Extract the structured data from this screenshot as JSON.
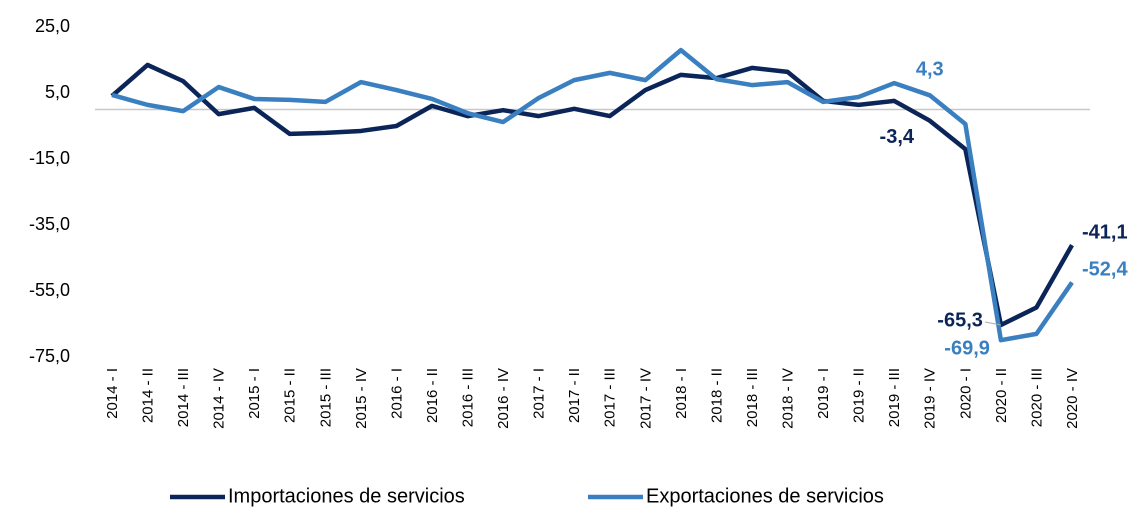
{
  "chart_data": {
    "type": "line",
    "categories": [
      "2014 - I",
      "2014 - II",
      "2014 - III",
      "2014 - IV",
      "2015 - I",
      "2015 - II",
      "2015 - III",
      "2015 - IV",
      "2016 - I",
      "2016 - II",
      "2016 - III",
      "2016 - IV",
      "2017 - I",
      "2017 - II",
      "2017 - III",
      "2017 - IV",
      "2018 - I",
      "2018 - II",
      "2018 - III",
      "2018 - IV",
      "2019 - I",
      "2019 - II",
      "2019 - III",
      "2019 - IV",
      "2020 - I",
      "2020 - II",
      "2020 - III",
      "2020 - IV"
    ],
    "series": [
      {
        "name": "Importaciones de servicios",
        "color": "#0b2559",
        "values": [
          4.1,
          13.5,
          8.6,
          -1.4,
          0.5,
          -7.4,
          -7.1,
          -6.5,
          -5,
          1.1,
          -2,
          -0.2,
          -2,
          0.2,
          -2,
          5.9,
          10.5,
          9.5,
          12.6,
          11.4,
          2.6,
          1.4,
          2.6,
          -3.4,
          -12,
          -65.3,
          -60,
          -41.1
        ],
        "value_labels": [
          null,
          null,
          null,
          null,
          null,
          null,
          null,
          null,
          null,
          null,
          null,
          null,
          null,
          null,
          null,
          null,
          null,
          null,
          null,
          null,
          null,
          null,
          null,
          "-3,4",
          null,
          "-65,3",
          null,
          "-41,1"
        ]
      },
      {
        "name": "Exportaciones de servicios",
        "color": "#3a7fc0",
        "values": [
          4.4,
          1.4,
          -0.5,
          6.8,
          3.2,
          2.9,
          2.3,
          8.3,
          5.9,
          3.2,
          -1.1,
          -3.8,
          3.5,
          8.9,
          11.1,
          8.9,
          18,
          9.2,
          7.4,
          8.3,
          2.3,
          3.8,
          8,
          4.3,
          -4.4,
          -69.9,
          -68,
          -52.4
        ],
        "value_labels": [
          null,
          null,
          null,
          null,
          null,
          null,
          null,
          null,
          null,
          null,
          null,
          null,
          null,
          null,
          null,
          null,
          null,
          null,
          null,
          null,
          null,
          null,
          null,
          "4,3",
          null,
          "-69,9",
          null,
          "-52,4"
        ]
      }
    ],
    "ylim": [
      -75,
      25
    ],
    "yticks": [
      {
        "value": 25,
        "label": "25,0"
      },
      {
        "value": 5,
        "label": "5,0"
      },
      {
        "value": -15,
        "label": "-15,0"
      },
      {
        "value": -35,
        "label": "-35,0"
      },
      {
        "value": -55,
        "label": "-55,0"
      },
      {
        "value": -75,
        "label": "-75,0"
      }
    ],
    "legend": "bottom"
  }
}
